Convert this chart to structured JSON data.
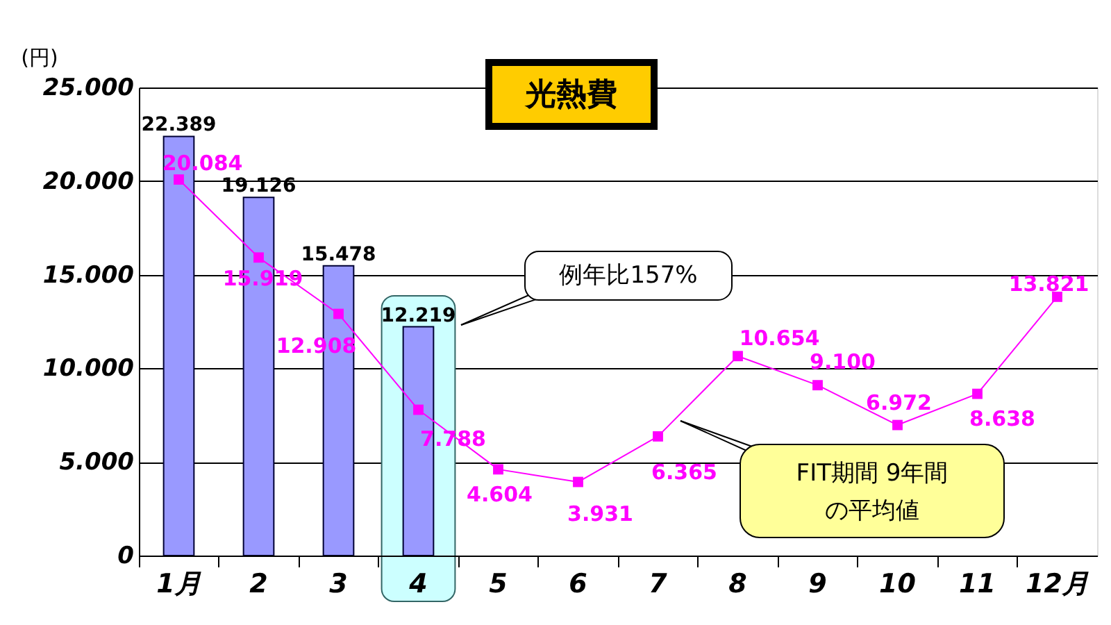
{
  "chart_data": {
    "type": "bar",
    "title": "光熱費",
    "ylabel": "(円)",
    "categories": [
      "1月",
      "2",
      "3",
      "4",
      "5",
      "6",
      "7",
      "8",
      "9",
      "10",
      "11",
      "12月"
    ],
    "series": [
      {
        "color": "#9999ff",
        "values": [
          22389,
          19126,
          15478,
          12219,
          null,
          null,
          null,
          null,
          null,
          null,
          null,
          null
        ],
        "value_labels": [
          "22.389",
          "19.126",
          "15.478",
          "12.219",
          null,
          null,
          null,
          null,
          null,
          null,
          null,
          null
        ]
      },
      {
        "type": "line",
        "name": "FIT期間 9年間の平均値",
        "color": "#ff00ff",
        "values": [
          20084,
          15919,
          12908,
          7788,
          4604,
          3931,
          6365,
          10654,
          9100,
          6972,
          8638,
          13821
        ],
        "value_labels": [
          "20.084",
          "15.919",
          "12.908",
          "7.788",
          "4.604",
          "3.931",
          "6.365",
          "10.654",
          "9.100",
          "6.972",
          "8.638",
          "13.821"
        ]
      }
    ],
    "ylim": [
      0,
      25000
    ],
    "yticks": [
      0,
      {
        "value": 5000,
        "label": "5.000"
      },
      {
        "value": 10000,
        "label": "10.000"
      },
      {
        "value": 15000,
        "label": "15.000"
      },
      {
        "value": 20000,
        "label": "20.000"
      },
      {
        "value": 25000,
        "label": "25.000"
      }
    ],
    "grid": "y",
    "marker": "square",
    "annotations": [
      "例年比157%"
    ],
    "bands": [
      {
        "axis": "x",
        "from": "4",
        "to": "4",
        "color": "#ccffff"
      }
    ]
  }
}
